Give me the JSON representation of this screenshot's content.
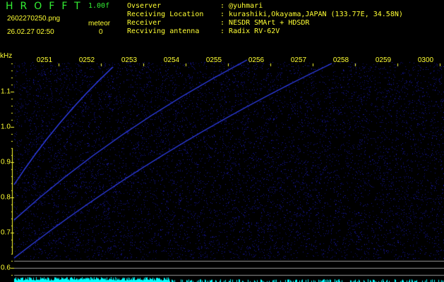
{
  "header": {
    "app_title": "HROFFT",
    "version": "1.00f",
    "filename": "2602270250.png",
    "datetime": "26.02.27 02:50",
    "meteor_label": "meteor",
    "meteor_count": "0"
  },
  "info": [
    {
      "label": "Ovserver",
      "value": "@yuhmari"
    },
    {
      "label": "Receiving Location",
      "value": "kurashiki,Okayama,JAPAN (133.77E, 34.58N)"
    },
    {
      "label": "Receiver",
      "value": "NESDR SMArt + HDSDR"
    },
    {
      "label": "Recviving antenna",
      "value": "Radix RV-62V"
    }
  ],
  "axis": {
    "y_unit": "kHz",
    "y_ticks": [
      "1.1",
      "1.0",
      "0.9",
      "0.8",
      "0.7",
      "0.6"
    ],
    "time_ticks": [
      "0251",
      "0252",
      "0253",
      "0254",
      "0255",
      "0256",
      "0257",
      "0258",
      "0259",
      "0300"
    ]
  },
  "colors": {
    "background": "#000000",
    "text": "#ffff33",
    "title": "#33ee33",
    "trace": "#3344ff",
    "noise": "#1a1aa0",
    "spectrum": "#00ffff",
    "ref_lines": "#999999"
  }
}
